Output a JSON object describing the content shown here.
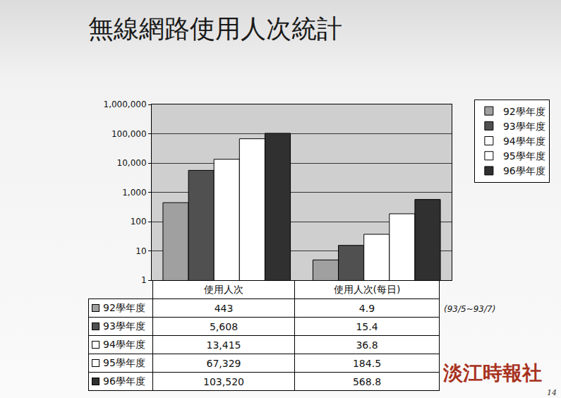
{
  "chart_data": {
    "type": "bar",
    "title": "無線網路使用人次統計",
    "categories": [
      "使用人次",
      "使用人次(每日)"
    ],
    "series": [
      {
        "name": "92學年度",
        "color": "#a0a0a0",
        "values": [
          443,
          4.9
        ],
        "value_labels": [
          "443",
          "4.9"
        ]
      },
      {
        "name": "93學年度",
        "color": "#505050",
        "values": [
          5608,
          15.4
        ],
        "value_labels": [
          "5,608",
          "15.4"
        ]
      },
      {
        "name": "94學年度",
        "color": "#ffffff",
        "values": [
          13415,
          36.8
        ],
        "value_labels": [
          "13,415",
          "36.8"
        ]
      },
      {
        "name": "95學年度",
        "color": "#ffffff",
        "values": [
          67329,
          184.5
        ],
        "value_labels": [
          "67,329",
          "184.5"
        ]
      },
      {
        "name": "96學年度",
        "color": "#303030",
        "values": [
          103520,
          568.8
        ],
        "value_labels": [
          "103,520",
          "568.8"
        ]
      }
    ],
    "ylim": [
      1,
      1000000
    ],
    "yticks": [
      1,
      10,
      100,
      {
        "value": 1000,
        "label": "1,000"
      },
      {
        "value": 10000,
        "label": "10,000"
      },
      {
        "value": 100000,
        "label": "100,000"
      },
      {
        "value": 1000000,
        "label": "1,000,000"
      }
    ],
    "log": "y",
    "grid": true,
    "legend": "right",
    "tick_labels": "y",
    "annotations": [
      {
        "text": "(93/5~93/7)"
      },
      {
        "text": "淡江時報社"
      },
      {
        "text": "14"
      }
    ]
  }
}
